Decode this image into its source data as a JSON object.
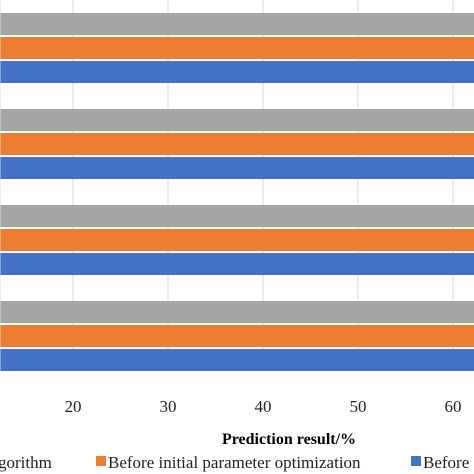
{
  "chart_data": {
    "type": "bar",
    "orientation": "horizontal",
    "xlabel": "Prediction result/%",
    "x_ticks": [
      20,
      30,
      40,
      50,
      60
    ],
    "xlim": [
      12,
      65
    ],
    "grid": "vertical",
    "legend_position": "bottom",
    "groups": 4,
    "series": [
      {
        "name": "",
        "legend_text": "gorithm",
        "color": "#a5a5a5"
      },
      {
        "name": "Before initial parameter optimization",
        "legend_text": "Before initial parameter optimization",
        "color": "#ed7d31"
      },
      {
        "name": "",
        "legend_text": "Before",
        "color": "#4472c4"
      }
    ],
    "values_note": "all bars extend beyond the visible x range"
  }
}
